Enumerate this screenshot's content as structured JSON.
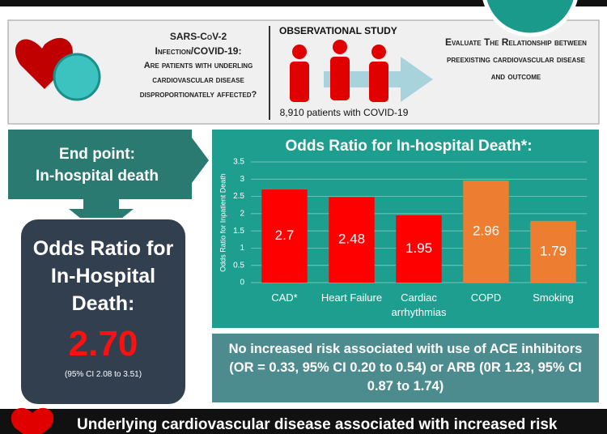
{
  "intro": {
    "heading": "SARS-CoV-2",
    "subheading": "Infection/COVID-19:",
    "question": "Are patients with underling cardiovascular disease disproportionately affected?"
  },
  "study": {
    "label": "OBSERVATIONAL STUDY",
    "patients": "8,910 patients with COVID-19"
  },
  "aim": "Evaluate The Relationship between preexisting cardiovascular disease and outcome",
  "end_point": {
    "line1": "End point:",
    "line2": "In-hospital death"
  },
  "summary": {
    "title": "Odds Ratio for In-Hospital Death:",
    "value": "2.70",
    "ci": "(95% CI 2.08 to 3.51)"
  },
  "chart_data": {
    "type": "bar",
    "title": "Odds Ratio for In-hospital Death*:",
    "y_label": "Odds Ratio for Inpatient Death",
    "categories": [
      "CAD*",
      "Heart Failure",
      "Cardiac arrhythmias",
      "COPD",
      "Smoking"
    ],
    "values": [
      2.7,
      2.48,
      1.95,
      2.96,
      1.79
    ],
    "colors": [
      "#ff0000",
      "#ff0000",
      "#ff0000",
      "#ed7d31",
      "#ed7d31"
    ],
    "ylim": [
      0,
      3.5
    ],
    "yticks": [
      0,
      0.5,
      1,
      1.5,
      2,
      2.5,
      3,
      3.5
    ],
    "grid": true
  },
  "note": "No increased risk associated with use of ACE inhibitors (OR = 0.33, 95% CI 0.20 to 0.54) or ARB (0R 1.23, 95% CI 0.87 to 1.74)",
  "footer": "Underlying cardiovascular disease associated with increased risk"
}
